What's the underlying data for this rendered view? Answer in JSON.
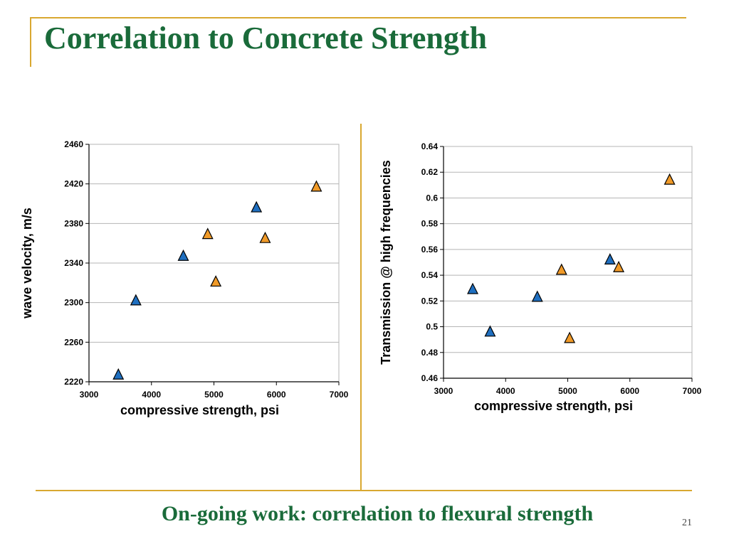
{
  "slide": {
    "title": "Correlation to Concrete Strength",
    "footer": "On-going work: correlation to flexural strength",
    "page_number": "21"
  },
  "colors": {
    "accent": "#d9a830",
    "title": "#1a6b3a",
    "series_a": "#1f6fc0",
    "series_b": "#f09a28",
    "grid": "#b5b5b5"
  },
  "chart_data": [
    {
      "type": "scatter",
      "xlabel": "compressive strength, psi",
      "ylabel": "wave velocity, m/s",
      "xlim": [
        3000,
        7000
      ],
      "ylim": [
        2220,
        2460
      ],
      "xticks": [
        "3000",
        "4000",
        "5000",
        "6000",
        "7000"
      ],
      "yticks": [
        "2220",
        "2260",
        "2300",
        "2340",
        "2380",
        "2420",
        "2460"
      ],
      "grid": true,
      "marker": "triangle",
      "series": [
        {
          "color": "#1f6fc0",
          "points": [
            [
              3470,
              2227
            ],
            [
              3750,
              2302
            ],
            [
              4510,
              2347
            ],
            [
              5680,
              2396
            ]
          ]
        },
        {
          "color": "#f09a28",
          "points": [
            [
              4900,
              2369
            ],
            [
              5030,
              2321
            ],
            [
              5820,
              2365
            ],
            [
              6640,
              2417
            ]
          ]
        }
      ]
    },
    {
      "type": "scatter",
      "xlabel": "compressive strength, psi",
      "ylabel": "Transmission @ high frequencies",
      "xlim": [
        3000,
        7000
      ],
      "ylim": [
        0.46,
        0.64
      ],
      "xticks": [
        "3000",
        "4000",
        "5000",
        "6000",
        "7000"
      ],
      "yticks": [
        "0.46",
        "0.48",
        "0.5",
        "0.52",
        "0.54",
        "0.56",
        "0.58",
        "0.6",
        "0.62",
        "0.64"
      ],
      "grid": true,
      "marker": "triangle",
      "series": [
        {
          "color": "#1f6fc0",
          "points": [
            [
              3470,
              0.529
            ],
            [
              3750,
              0.496
            ],
            [
              4510,
              0.523
            ],
            [
              5680,
              0.552
            ]
          ]
        },
        {
          "color": "#f09a28",
          "points": [
            [
              4900,
              0.544
            ],
            [
              5030,
              0.491
            ],
            [
              5820,
              0.546
            ],
            [
              6640,
              0.614
            ]
          ]
        }
      ]
    }
  ]
}
